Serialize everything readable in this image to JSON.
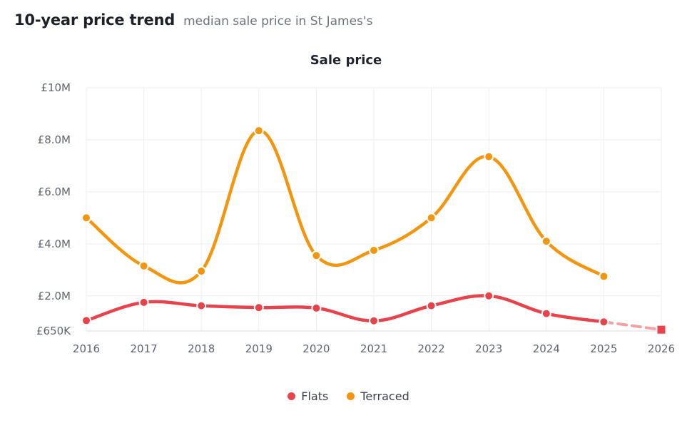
{
  "header": {
    "title": "10-year price trend",
    "subtitle": "median sale price in St James's"
  },
  "chart_data": {
    "type": "line",
    "title": "Sale price",
    "xlabel": "",
    "ylabel": "",
    "x": [
      "2016",
      "2017",
      "2018",
      "2019",
      "2020",
      "2021",
      "2022",
      "2023",
      "2024",
      "2025",
      "2026"
    ],
    "ylim": [
      650000,
      10000000
    ],
    "y_ticks": [
      650000,
      2000000,
      4000000,
      6000000,
      8000000,
      10000000
    ],
    "y_tick_labels": [
      "£650K",
      "£2.0M",
      "£4.0M",
      "£6.0M",
      "£8.0M",
      "£10M"
    ],
    "grid": true,
    "legend_position": "bottom-center",
    "series": [
      {
        "name": "Flats",
        "color": "#e8434b",
        "values": [
          1050000,
          1750000,
          1620000,
          1550000,
          1530000,
          1040000,
          1620000,
          2000000,
          1320000,
          1000000,
          null
        ],
        "forecast": {
          "from_index": 9,
          "to_index": 10,
          "value": 700000,
          "color": "#f2a1a5"
        }
      },
      {
        "name": "Terraced",
        "color": "#f3960f",
        "values": [
          5000000,
          3150000,
          2950000,
          8350000,
          3550000,
          3750000,
          5000000,
          7350000,
          4100000,
          2750000,
          null
        ]
      }
    ]
  }
}
